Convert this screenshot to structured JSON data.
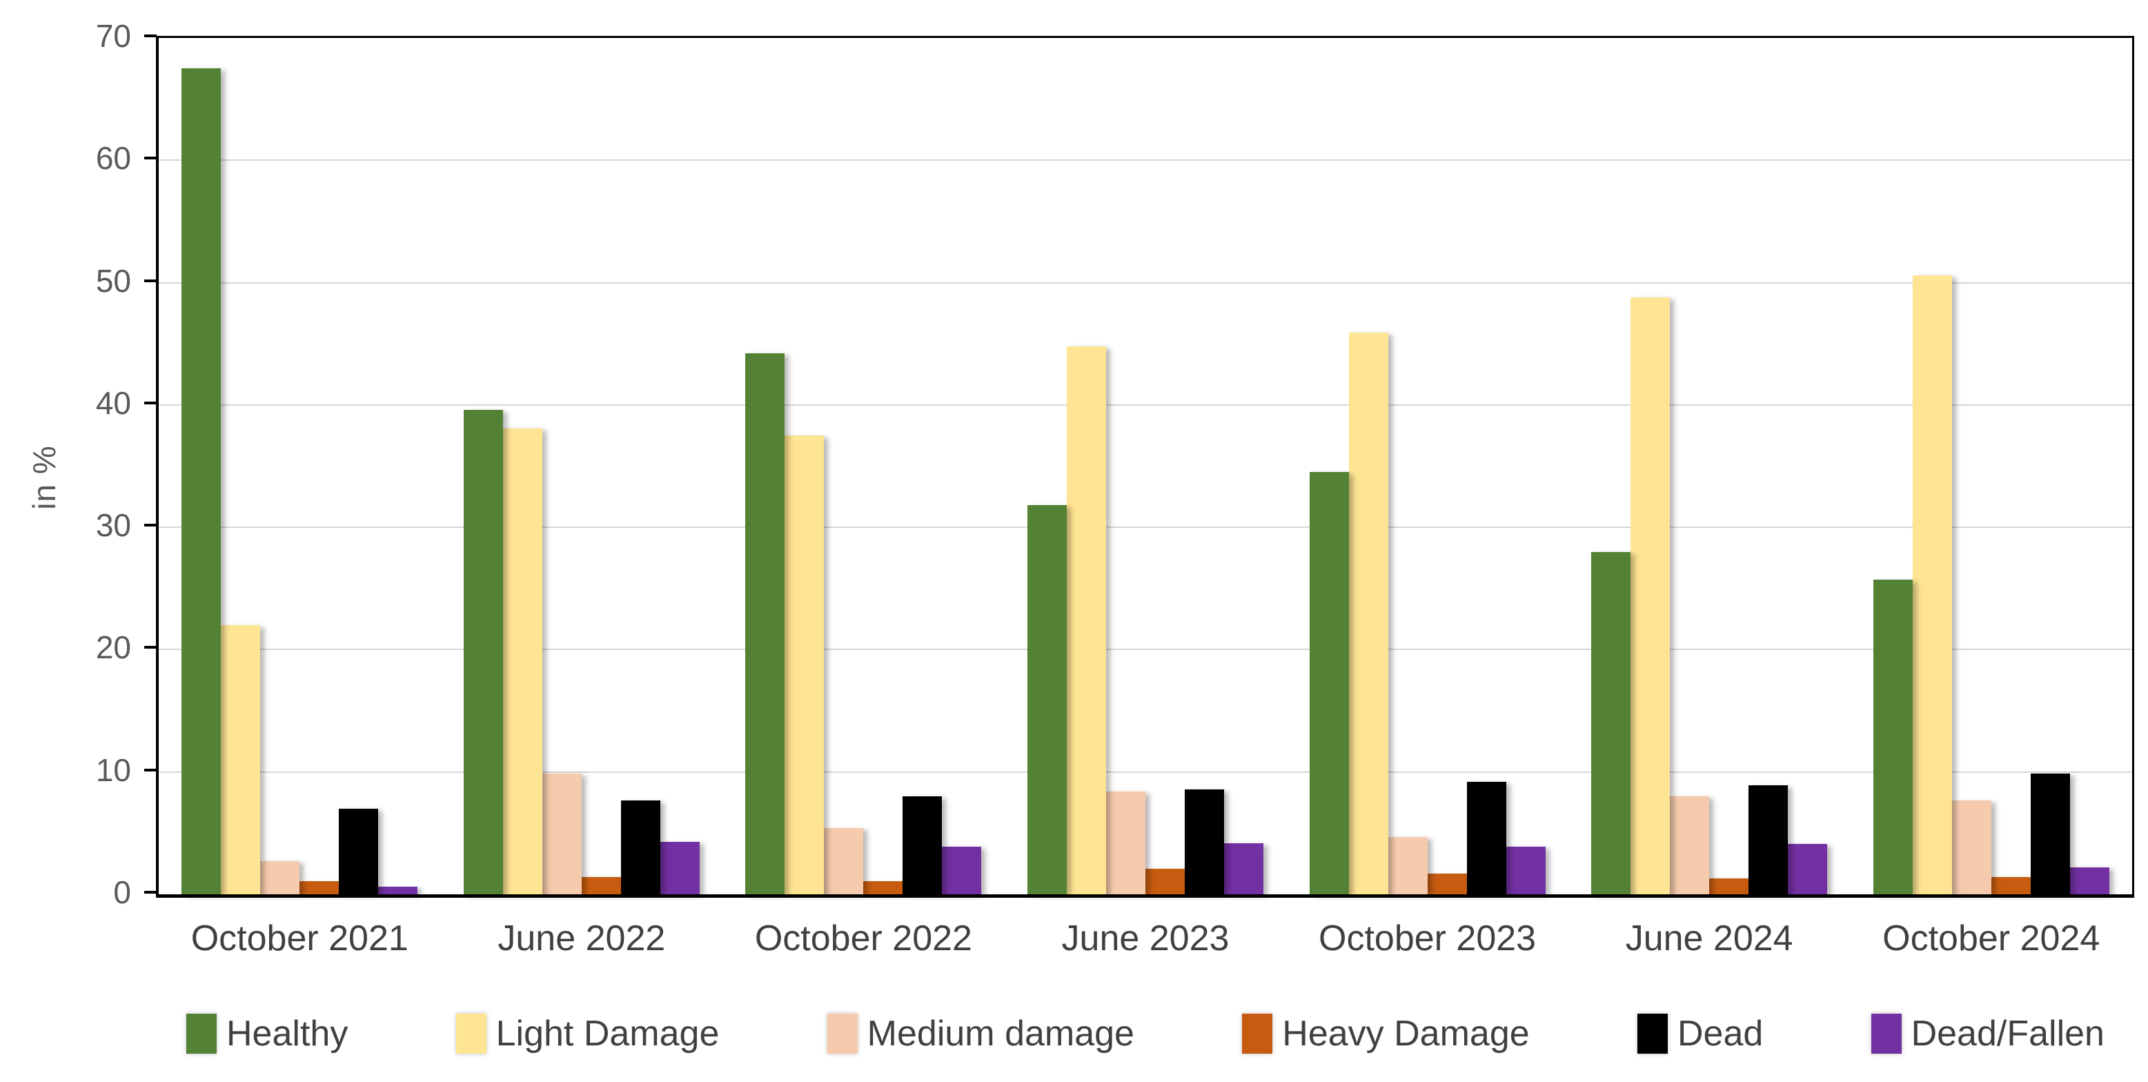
{
  "page": {
    "background": "#ffffff"
  },
  "chart_data": {
    "type": "bar",
    "title": "",
    "xlabel": "",
    "ylabel": "in %",
    "ylim": [
      0,
      70
    ],
    "ytick_step": 10,
    "yticks": [
      "0",
      "10",
      "20",
      "30",
      "40",
      "50",
      "60",
      "70"
    ],
    "grid": true,
    "legend_position": "bottom",
    "categories": [
      "October 2021",
      "June 2022",
      "October 2022",
      "June 2023",
      "October 2023",
      "June 2024",
      "October 2024"
    ],
    "series": [
      {
        "name": "Healthy",
        "color": "#548235",
        "values": [
          67.5,
          39.6,
          44.2,
          31.8,
          34.5,
          28.0,
          25.7
        ]
      },
      {
        "name": "Light Damage",
        "color": "#FFE593",
        "values": [
          22.0,
          38.1,
          37.5,
          44.8,
          45.9,
          48.8,
          50.6
        ]
      },
      {
        "name": "Medium damage",
        "color": "#F6CBAD",
        "values": [
          2.7,
          9.9,
          5.4,
          8.4,
          4.7,
          8.0,
          7.7
        ]
      },
      {
        "name": "Heavy Damage",
        "color": "#C75C11",
        "values": [
          1.1,
          1.4,
          1.1,
          2.1,
          1.7,
          1.3,
          1.4
        ]
      },
      {
        "name": "Dead",
        "color": "#000000",
        "values": [
          7.0,
          7.7,
          8.0,
          8.6,
          9.2,
          8.9,
          9.9
        ]
      },
      {
        "name": "Dead/Fallen",
        "color": "#7230A3",
        "values": [
          0.6,
          4.3,
          3.9,
          4.2,
          3.9,
          4.1,
          2.2
        ]
      }
    ],
    "axis_color": "#000000",
    "gridline_color": "#D6D6D6",
    "tick_label_color": "#595959",
    "category_label_color": "#404040",
    "legend_label_color": "#404040"
  }
}
